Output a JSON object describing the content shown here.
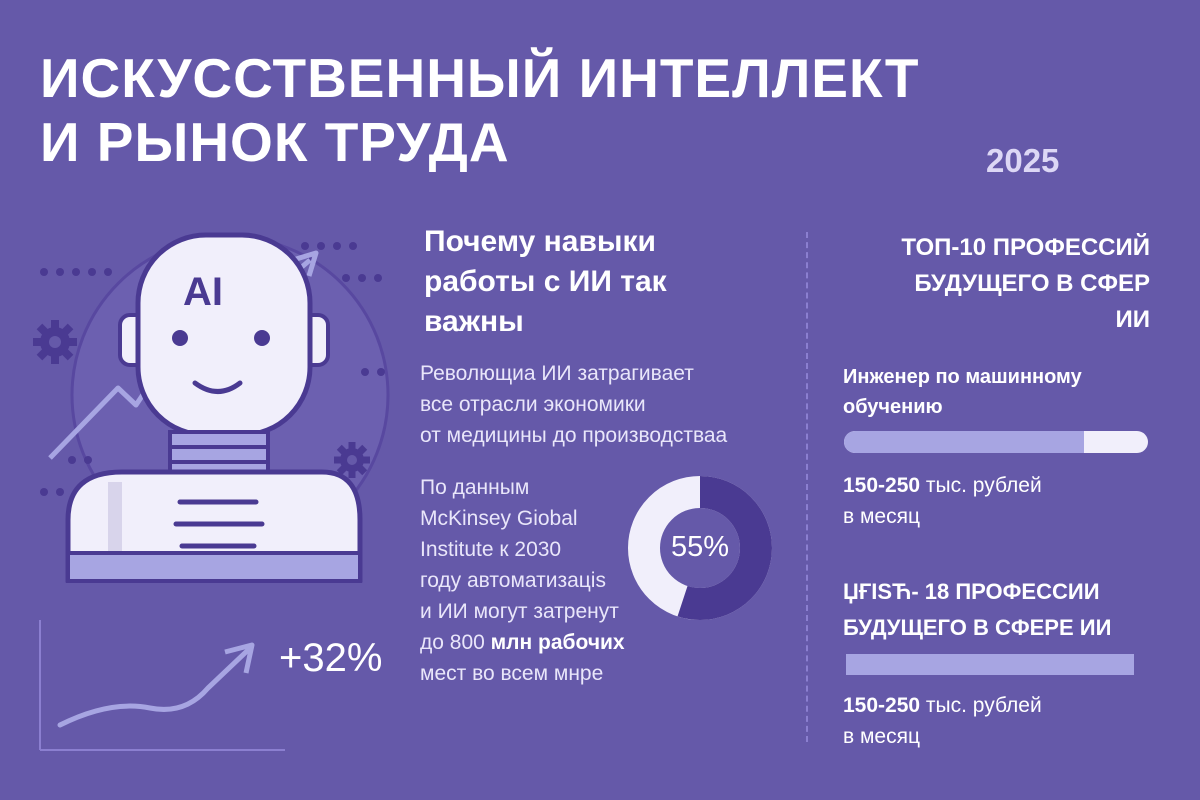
{
  "header": {
    "title_line1": "ИСКУССТВЕННЫЙ ИНТЕЛЛЕКТ",
    "title_line2": "И РЫНОК ТРУДА",
    "year": "2025"
  },
  "illustration": {
    "robot_chest_text": "AI",
    "growth_label": "+32%"
  },
  "middle": {
    "heading": [
      "Почему навыки",
      "работы с ИИ так",
      "важны"
    ],
    "paragraph1": [
      "Револющиа ИИ затрагивает",
      "все отрасли экономики",
      "от медицины до производстваа"
    ],
    "paragraph2_lines": [
      "По данным",
      "McKinsey Giobal",
      "Institute к 2030",
      "году автоматизацis",
      "и ИИ могут затренут"
    ],
    "paragraph2_line6_normal": "до 800 ",
    "paragraph2_line6_bold": "млн рабочих",
    "paragraph2_line7": "мест во всем мнре",
    "donut": {
      "label": "55%",
      "value_percent": 55
    }
  },
  "right": {
    "heading": [
      "ТОП-10 ПРОФЕССИЙ",
      "БУДУЩЕГО В СФЕР",
      "ИИ"
    ],
    "job1": {
      "title": [
        "Инженер по машинному",
        "обучению"
      ],
      "bar_fraction": 0.79,
      "salary_num": "150-250",
      "salary_rest": " тыс. рублей",
      "salary_period": "в месяц"
    },
    "heading2": [
      "ЏҒІSЋ- 18 ПРОФЕССИИ",
      "БУДУЩЕГО В СФЕРЕ ИИ"
    ],
    "job2": {
      "bar_fraction": 1.0,
      "salary_num": "150-250",
      "salary_rest": " тыс. рублей",
      "salary_period": "в месяц"
    }
  },
  "colors": {
    "background": "#6559a9",
    "dark_purple": "#4a3a92",
    "light_lavender": "#a7a5e2",
    "off_white": "#f1effb"
  }
}
